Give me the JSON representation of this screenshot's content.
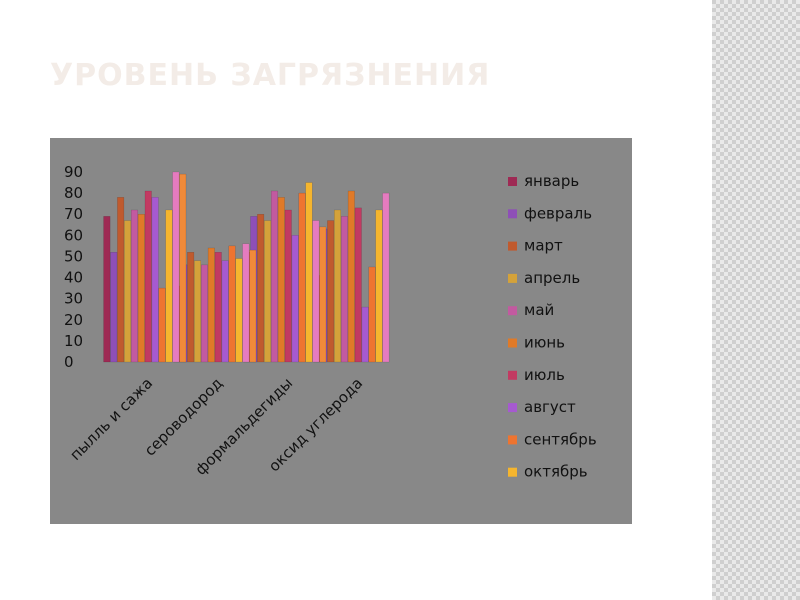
{
  "slide": {
    "title": "Уровень загрязнения"
  },
  "colors": {
    "title_text": "#f3ece7",
    "panel_background": "#888888",
    "side_band": "#cfcfcf"
  },
  "chart_data": {
    "type": "bar",
    "title": "",
    "xlabel": "",
    "ylabel": "",
    "ylim": [
      0,
      90
    ],
    "yticks": [
      0,
      10,
      20,
      30,
      40,
      50,
      60,
      70,
      80,
      90
    ],
    "grid": false,
    "legend_position": "right",
    "categories": [
      "пылль и сажа",
      "сероводород",
      "формальдегиды",
      "оксид углерода"
    ],
    "series": [
      {
        "name": "январь",
        "color": "#9e2a54",
        "values": [
          69,
          36,
          52,
          41
        ]
      },
      {
        "name": "февраль",
        "color": "#8e4fb7",
        "values": [
          52,
          46,
          69,
          63
        ]
      },
      {
        "name": "март",
        "color": "#c05a2e",
        "values": [
          78,
          52,
          70,
          67
        ]
      },
      {
        "name": "апрель",
        "color": "#d4a23a",
        "values": [
          67,
          48,
          67,
          72
        ]
      },
      {
        "name": "май",
        "color": "#c25aa0",
        "values": [
          72,
          46,
          81,
          69
        ]
      },
      {
        "name": "июнь",
        "color": "#e07a28",
        "values": [
          70,
          54,
          78,
          81
        ]
      },
      {
        "name": "июль",
        "color": "#c23a62",
        "values": [
          81,
          52,
          72,
          73
        ]
      },
      {
        "name": "август",
        "color": "#a65ad0",
        "values": [
          78,
          48,
          60,
          26
        ]
      },
      {
        "name": "сентябрь",
        "color": "#ee7430",
        "values": [
          35,
          55,
          80,
          45
        ]
      },
      {
        "name": "октябрь",
        "color": "#f5b52e",
        "values": [
          72,
          49,
          85,
          72
        ]
      },
      {
        "name": "",
        "color": "#e57bbf",
        "values": [
          90,
          56,
          67,
          80
        ]
      },
      {
        "name": "",
        "color": "#f08a3a",
        "values": [
          89,
          53,
          64,
          null
        ]
      }
    ]
  }
}
